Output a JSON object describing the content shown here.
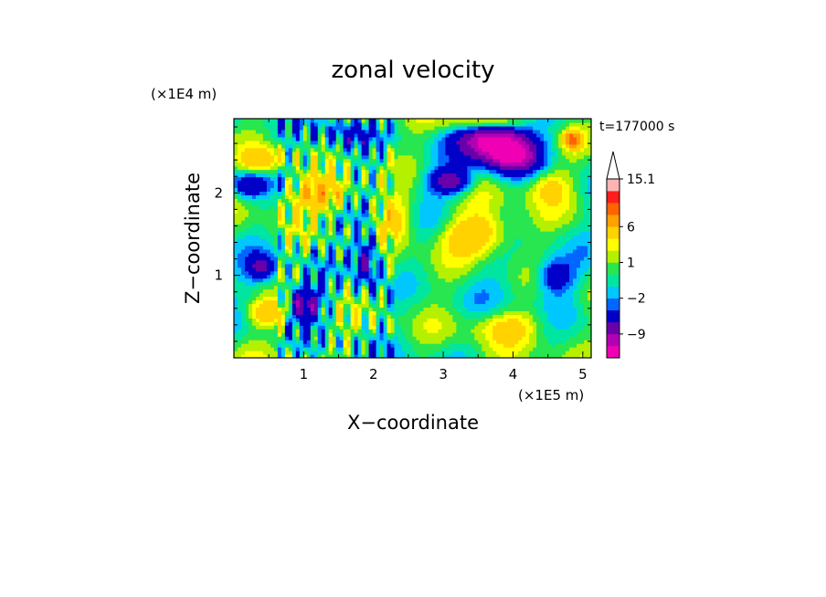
{
  "chart_data": {
    "type": "heatmap",
    "title": "zonal velocity",
    "xlabel": "X−coordinate",
    "ylabel": "Z−coordinate",
    "x_unit": "(×1E5 m)",
    "y_unit": "(×1E4 m)",
    "time_label": "t=177000 s",
    "xlim": [
      0,
      5.12
    ],
    "ylim": [
      0,
      2.9
    ],
    "x_ticks": [
      1,
      2,
      3,
      4,
      5
    ],
    "y_ticks": [
      1,
      2
    ],
    "colorbar": {
      "levels": [
        -15,
        -12,
        -9,
        -6,
        -3,
        -2,
        -1,
        0,
        1,
        2,
        3,
        6,
        9,
        12,
        15.1
      ],
      "labels": [
        "15.1",
        "6",
        "1",
        "−2",
        "−9"
      ],
      "label_values": [
        15.1,
        6,
        1,
        -2,
        -9
      ],
      "colors": [
        "#f000b4",
        "#b400b4",
        "#6a00aa",
        "#0000c8",
        "#0066ff",
        "#00c8ff",
        "#00e6a0",
        "#28e650",
        "#b4f000",
        "#ffff00",
        "#ffd200",
        "#ffa000",
        "#ff6400",
        "#ff1e1e",
        "#ffb4b4"
      ],
      "extend": "max"
    }
  }
}
